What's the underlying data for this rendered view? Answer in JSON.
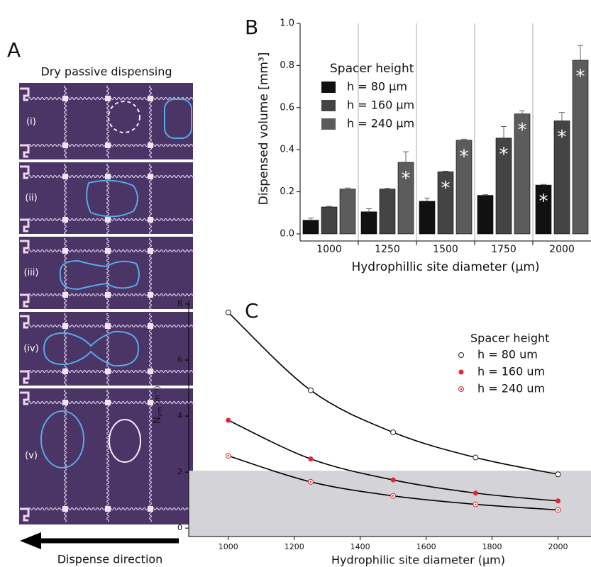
{
  "panel_a": {
    "letter": "A",
    "title": "Dry passive dispensing",
    "frames": [
      "(i)",
      "(ii)",
      "(iii)",
      "(iv)",
      "(v)"
    ],
    "caption": "Dispense direction"
  },
  "chart_data": [
    {
      "type": "bar",
      "panel": "B",
      "xlabel": "Hydrophillic site diameter (μm)",
      "ylabel": "Dispensed volume [mm³]",
      "legend_title": "Spacer height",
      "legend": "top-left",
      "categories": [
        "1000",
        "1250",
        "1500",
        "1750",
        "2000"
      ],
      "ylim": [
        0,
        1.0
      ],
      "yticks": [
        {
          "value": 0,
          "label": "0.0"
        },
        0.2,
        0.4,
        0.6,
        0.8,
        {
          "value": 1.0,
          "label": "1.0"
        }
      ],
      "category_separators": true,
      "series": [
        {
          "name": "h = 80 μm",
          "color": "#111111",
          "values": [
            0.065,
            0.105,
            0.155,
            0.183,
            0.232
          ],
          "errors": [
            0.01,
            0.015,
            0.015,
            0.003,
            0.003
          ],
          "labels": [
            null,
            null,
            null,
            null,
            "*"
          ]
        },
        {
          "name": "h = 160 μm",
          "color": "#444444",
          "values": [
            0.128,
            0.213,
            0.295,
            0.455,
            0.537
          ],
          "errors": [
            0.003,
            0.003,
            0.003,
            0.055,
            0.04
          ],
          "labels": [
            null,
            null,
            "*",
            "*",
            "*"
          ]
        },
        {
          "name": "h = 240 μm",
          "color": "#5c5c5c",
          "values": [
            0.213,
            0.34,
            0.445,
            0.57,
            0.825
          ],
          "errors": [
            0.005,
            0.05,
            0.005,
            0.015,
            0.07
          ],
          "labels": [
            null,
            "*",
            "*",
            "*",
            "*"
          ]
        }
      ]
    },
    {
      "type": "scatter",
      "panel": "C",
      "xlabel": "Hydrophilic site diameter (μm)",
      "ylabel_main": "N",
      "ylabel_sub": "vm",
      "ylabel_unit": "(m⁻¹)",
      "legend_title": "Spacer height",
      "legend": "top-right",
      "xlim": [
        880,
        2100
      ],
      "ylim": [
        -0.3,
        8.1
      ],
      "xticks": [
        1000,
        1200,
        1400,
        1600,
        1800,
        2000
      ],
      "yticks": [
        0,
        2,
        4,
        6,
        8
      ],
      "shade_ymax": 2.05,
      "shade_color": "#d3d3d8",
      "fit": true,
      "x": [
        1000,
        1250,
        1500,
        1750,
        2000
      ],
      "series": [
        {
          "name": "h = 80 um",
          "color": "#222222",
          "marker": "open",
          "values": [
            7.7,
            4.92,
            3.42,
            2.52,
            1.92
          ]
        },
        {
          "name": "h = 160 um",
          "color": "#e0282c",
          "marker": "filled",
          "values": [
            3.85,
            2.47,
            1.72,
            1.25,
            0.97
          ]
        },
        {
          "name": "h = 240 um",
          "color": "#e0282c",
          "marker": "dotted",
          "values": [
            2.58,
            1.65,
            1.15,
            0.85,
            0.65
          ]
        }
      ]
    }
  ]
}
